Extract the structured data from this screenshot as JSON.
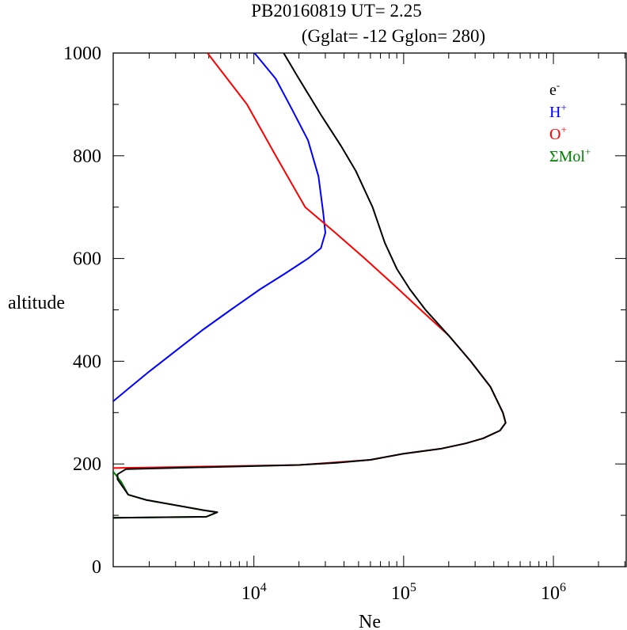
{
  "chart_data": {
    "type": "line",
    "title": "PB20160819   UT=  2.25",
    "subtitle": "(Gglat= -12   Gglon=  280)",
    "xlabel": "Ne",
    "ylabel": "altitude",
    "xscale": "log",
    "xlim": [
      1150,
      3100000
    ],
    "ylim": [
      0,
      1000
    ],
    "x_tick_labels": [
      {
        "value": 10000,
        "base": "10",
        "exp": "4"
      },
      {
        "value": 100000,
        "base": "10",
        "exp": "5"
      },
      {
        "value": 1000000,
        "base": "10",
        "exp": "6"
      }
    ],
    "y_ticks": [
      0,
      200,
      400,
      600,
      800,
      1000
    ],
    "y_tick_labels": [
      "0",
      "200",
      "400",
      "600",
      "800",
      "1000"
    ],
    "legend_position": "top-right",
    "series": [
      {
        "name": "e",
        "sup": "-",
        "color": "#000000",
        "points": [
          [
            1150,
            95
          ],
          [
            4800,
            97
          ],
          [
            5700,
            106
          ],
          [
            4600,
            110
          ],
          [
            1900,
            130
          ],
          [
            1450,
            140
          ],
          [
            1230,
            170
          ],
          [
            1230,
            180
          ],
          [
            1400,
            190
          ],
          [
            20000,
            198
          ],
          [
            35000,
            202
          ],
          [
            60000,
            208
          ],
          [
            100000,
            220
          ],
          [
            180000,
            230
          ],
          [
            260000,
            240
          ],
          [
            340000,
            250
          ],
          [
            440000,
            265
          ],
          [
            480000,
            280
          ],
          [
            460000,
            300
          ],
          [
            380000,
            350
          ],
          [
            280000,
            400
          ],
          [
            200000,
            450
          ],
          [
            140000,
            500
          ],
          [
            110000,
            540
          ],
          [
            90000,
            580
          ],
          [
            75000,
            630
          ],
          [
            62000,
            700
          ],
          [
            48000,
            770
          ],
          [
            38000,
            820
          ],
          [
            28000,
            880
          ],
          [
            20000,
            950
          ],
          [
            15800,
            1000
          ]
        ]
      },
      {
        "name": "H",
        "sup": "+",
        "color": "#0000ff",
        "points": [
          [
            1150,
            322
          ],
          [
            1500,
            350
          ],
          [
            2000,
            380
          ],
          [
            3000,
            420
          ],
          [
            4500,
            460
          ],
          [
            7000,
            500
          ],
          [
            11000,
            540
          ],
          [
            16000,
            570
          ],
          [
            23000,
            600
          ],
          [
            28000,
            620
          ],
          [
            30000,
            650
          ],
          [
            29000,
            690
          ],
          [
            27000,
            760
          ],
          [
            23000,
            830
          ],
          [
            18000,
            890
          ],
          [
            14000,
            950
          ],
          [
            10100,
            1000
          ]
        ]
      },
      {
        "name": "O",
        "sup": "+",
        "color": "#ff0000",
        "points": [
          [
            1150,
            192
          ],
          [
            3000,
            194
          ],
          [
            20000,
            198
          ],
          [
            60000,
            208
          ],
          [
            100000,
            220
          ],
          [
            180000,
            230
          ],
          [
            260000,
            240
          ],
          [
            340000,
            250
          ],
          [
            440000,
            265
          ],
          [
            480000,
            280
          ],
          [
            460000,
            300
          ],
          [
            380000,
            350
          ],
          [
            280000,
            400
          ],
          [
            200000,
            450
          ],
          [
            130000,
            500
          ],
          [
            85000,
            550
          ],
          [
            55000,
            600
          ],
          [
            35000,
            650
          ],
          [
            22000,
            700
          ],
          [
            14000,
            800
          ],
          [
            9000,
            900
          ],
          [
            4900,
            1000
          ]
        ]
      },
      {
        "name": "ΣMol",
        "sup": "+",
        "color": "#008000",
        "points": [
          [
            1150,
            95
          ],
          [
            4800,
            97
          ],
          [
            5700,
            106
          ],
          [
            4600,
            110
          ],
          [
            1900,
            130
          ],
          [
            1450,
            140
          ],
          [
            1300,
            165
          ],
          [
            1150,
            185
          ]
        ]
      }
    ]
  }
}
